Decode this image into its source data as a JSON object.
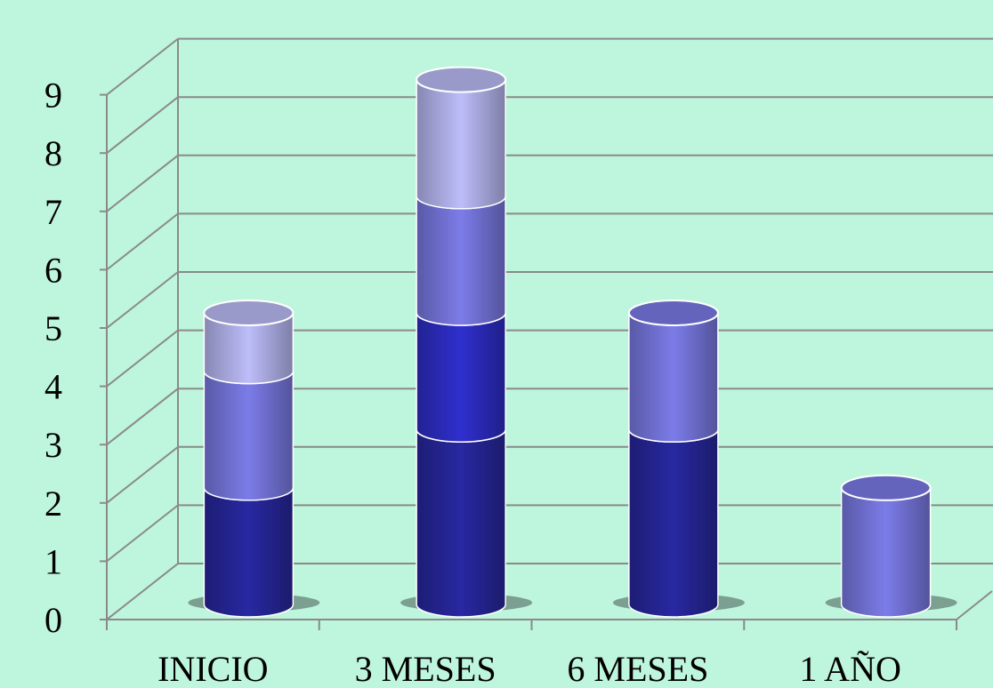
{
  "chart_data": {
    "type": "bar",
    "stacked": true,
    "three_d": true,
    "categories": [
      "INICIO",
      "3 MESES",
      "6 MESES",
      "1 AÑO"
    ],
    "series": [
      {
        "color": "#26269a",
        "values": [
          2,
          3,
          3,
          0
        ]
      },
      {
        "color": "#2d2dc4",
        "values": [
          0,
          2,
          0,
          0
        ]
      },
      {
        "color": "#7676de",
        "values": [
          2,
          2,
          2,
          2
        ]
      },
      {
        "color": "#b4b4ee",
        "values": [
          1,
          2,
          0,
          0
        ]
      }
    ],
    "yticks": [
      "0",
      "1",
      "2",
      "3",
      "4",
      "5",
      "6",
      "7",
      "8",
      "9"
    ],
    "ylim": [
      0,
      9
    ],
    "grid": true,
    "legend": "none",
    "title": "",
    "xlabel": "",
    "ylabel": "",
    "colors": {
      "background": "#bef5dd",
      "gridline": "#8a8a8a",
      "axis": "#8a8a8a"
    }
  }
}
